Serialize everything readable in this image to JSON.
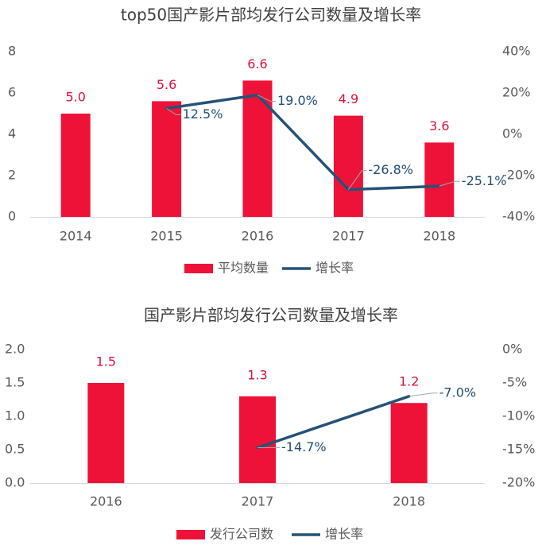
{
  "colors": {
    "bar": "#EE1238",
    "line": "#255276",
    "bar_label": "#D9123A",
    "line_label": "#1F4E74",
    "axis_text": "#595959",
    "title_text": "#404040",
    "axis_line": "#D9D9D9",
    "leader": "#A6A6A6"
  },
  "chart_data": [
    {
      "type": "bar",
      "title": "top50国产影片部均发行公司数量及增长率",
      "categories": [
        "2014",
        "2015",
        "2016",
        "2017",
        "2018"
      ],
      "series": [
        {
          "name": "平均数量",
          "kind": "bar",
          "axis": "left",
          "values": [
            5.0,
            5.6,
            6.6,
            4.9,
            3.6
          ],
          "labels": [
            "5.0",
            "5.6",
            "6.6",
            "4.9",
            "3.6"
          ]
        },
        {
          "name": "增长率",
          "kind": "line",
          "axis": "right",
          "values": [
            null,
            12.5,
            19.0,
            -26.8,
            -25.1
          ],
          "labels": [
            "",
            "12.5%",
            "19.0%",
            "-26.8%",
            "-25.1%"
          ]
        }
      ],
      "left_axis": {
        "min": 0,
        "max": 8,
        "ticks": [
          "0",
          "2",
          "4",
          "6",
          "8"
        ]
      },
      "right_axis": {
        "min": -40,
        "max": 40,
        "ticks": [
          "-40%",
          "-20%",
          "0%",
          "20%",
          "40%"
        ]
      },
      "legend": [
        "平均数量",
        "增长率"
      ],
      "legend_position": "bottom"
    },
    {
      "type": "bar",
      "title": "国产影片部均发行公司数量及增长率",
      "categories": [
        "2016",
        "2017",
        "2018"
      ],
      "series": [
        {
          "name": "发行公司数",
          "kind": "bar",
          "axis": "left",
          "values": [
            1.5,
            1.3,
            1.2
          ],
          "labels": [
            "1.5",
            "1.3",
            "1.2"
          ]
        },
        {
          "name": "增长率",
          "kind": "line",
          "axis": "right",
          "values": [
            null,
            -14.7,
            -7.0
          ],
          "labels": [
            "",
            "-14.7%",
            "-7.0%"
          ]
        }
      ],
      "left_axis": {
        "min": 0,
        "max": 2,
        "ticks": [
          "0.0",
          "0.5",
          "1.0",
          "1.5",
          "2.0"
        ]
      },
      "right_axis": {
        "min": -20,
        "max": 0,
        "ticks": [
          "-20%",
          "-15%",
          "-10%",
          "-5%",
          "0%"
        ]
      },
      "legend": [
        "发行公司数",
        "增长率"
      ],
      "legend_position": "bottom"
    }
  ]
}
